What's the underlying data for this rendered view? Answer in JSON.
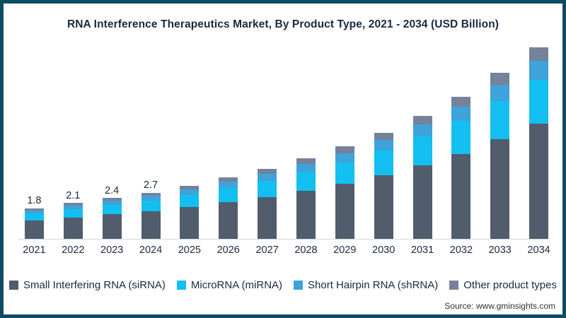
{
  "header": {
    "title": "RNA Interference Therapeutics Market, By Product Type, 2021 - 2034 (USD Billion)"
  },
  "chart_data": {
    "type": "bar",
    "stacked": true,
    "title": "RNA Interference Therapeutics Market, By Product Type, 2021 - 2034 (USD Billion)",
    "xlabel": "",
    "ylabel": "USD Billion",
    "ylim": [
      0,
      11.5
    ],
    "grid": false,
    "legend_position": "bottom",
    "categories": [
      "2021",
      "2022",
      "2023",
      "2024",
      "2025",
      "2026",
      "2027",
      "2028",
      "2029",
      "2030",
      "2031",
      "2032",
      "2033",
      "2034"
    ],
    "series": [
      {
        "name": "Small Interfering RNA (siRNA)",
        "color": "#515C6C",
        "values": [
          1.08,
          1.26,
          1.44,
          1.62,
          1.86,
          2.16,
          2.46,
          2.82,
          3.24,
          3.72,
          4.32,
          4.98,
          5.82,
          6.72
        ]
      },
      {
        "name": "MicroRNA (miRNA)",
        "color": "#13BFF0",
        "values": [
          0.41,
          0.48,
          0.55,
          0.62,
          0.71,
          0.83,
          0.94,
          1.08,
          1.24,
          1.43,
          1.66,
          1.91,
          2.23,
          2.58
        ]
      },
      {
        "name": "Short Hairpin RNA (shRNA)",
        "color": "#3EA3DB",
        "values": [
          0.18,
          0.21,
          0.24,
          0.27,
          0.31,
          0.36,
          0.41,
          0.47,
          0.54,
          0.62,
          0.72,
          0.83,
          0.97,
          1.12
        ]
      },
      {
        "name": "Other product types",
        "color": "#75829A",
        "values": [
          0.13,
          0.15,
          0.17,
          0.19,
          0.22,
          0.25,
          0.29,
          0.33,
          0.38,
          0.43,
          0.5,
          0.58,
          0.68,
          0.78
        ]
      }
    ],
    "totals": [
      1.8,
      2.1,
      2.4,
      2.7,
      3.1,
      3.6,
      4.1,
      4.7,
      5.4,
      6.2,
      7.2,
      8.3,
      9.7,
      11.2
    ],
    "value_labels": [
      "1.8",
      "2.1",
      "2.4",
      "2.7",
      "",
      "",
      "",
      "",
      "",
      "",
      "",
      "",
      "",
      ""
    ]
  },
  "source": {
    "label": "Source: www.gminsights.com"
  },
  "colors": {
    "frame_border": "#104A62",
    "text": "#1A2940",
    "axis_line": "#D9D9D9",
    "background": "#FFFFFF"
  }
}
